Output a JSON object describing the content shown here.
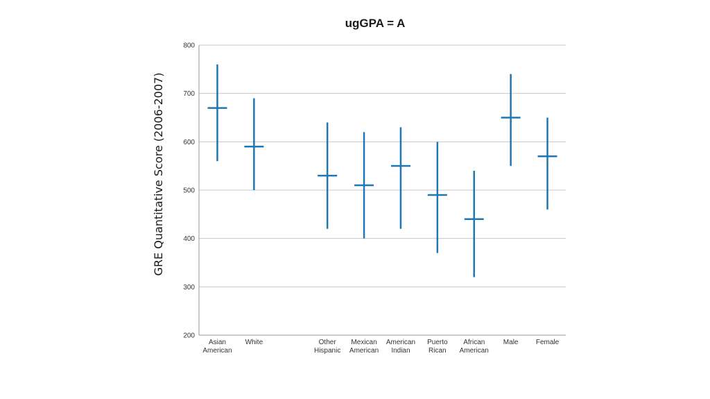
{
  "chart_data": {
    "type": "range",
    "title": "ugGPA = A",
    "xlabel": "",
    "ylabel": "GRE Quantitative Score (2006-2007)",
    "ylim": [
      200,
      800
    ],
    "yticks": [
      200,
      300,
      400,
      500,
      600,
      700,
      800
    ],
    "grid": true,
    "color": "#1f77b4",
    "categories": [
      [
        "Asian",
        "American"
      ],
      [
        "White"
      ],
      [],
      [
        "Other",
        "Hispanic"
      ],
      [
        "Mexican",
        "American"
      ],
      [
        "American",
        "Indian"
      ],
      [
        "Puerto",
        "Rican"
      ],
      [
        "African",
        "American"
      ],
      [
        "Male"
      ],
      [
        "Female"
      ]
    ],
    "series": [
      {
        "low": [
          560,
          500,
          null,
          420,
          400,
          420,
          370,
          320,
          550,
          460
        ],
        "mid": [
          670,
          590,
          null,
          530,
          510,
          550,
          490,
          440,
          650,
          570
        ],
        "high": [
          760,
          690,
          null,
          640,
          620,
          630,
          600,
          540,
          740,
          650
        ]
      }
    ]
  }
}
